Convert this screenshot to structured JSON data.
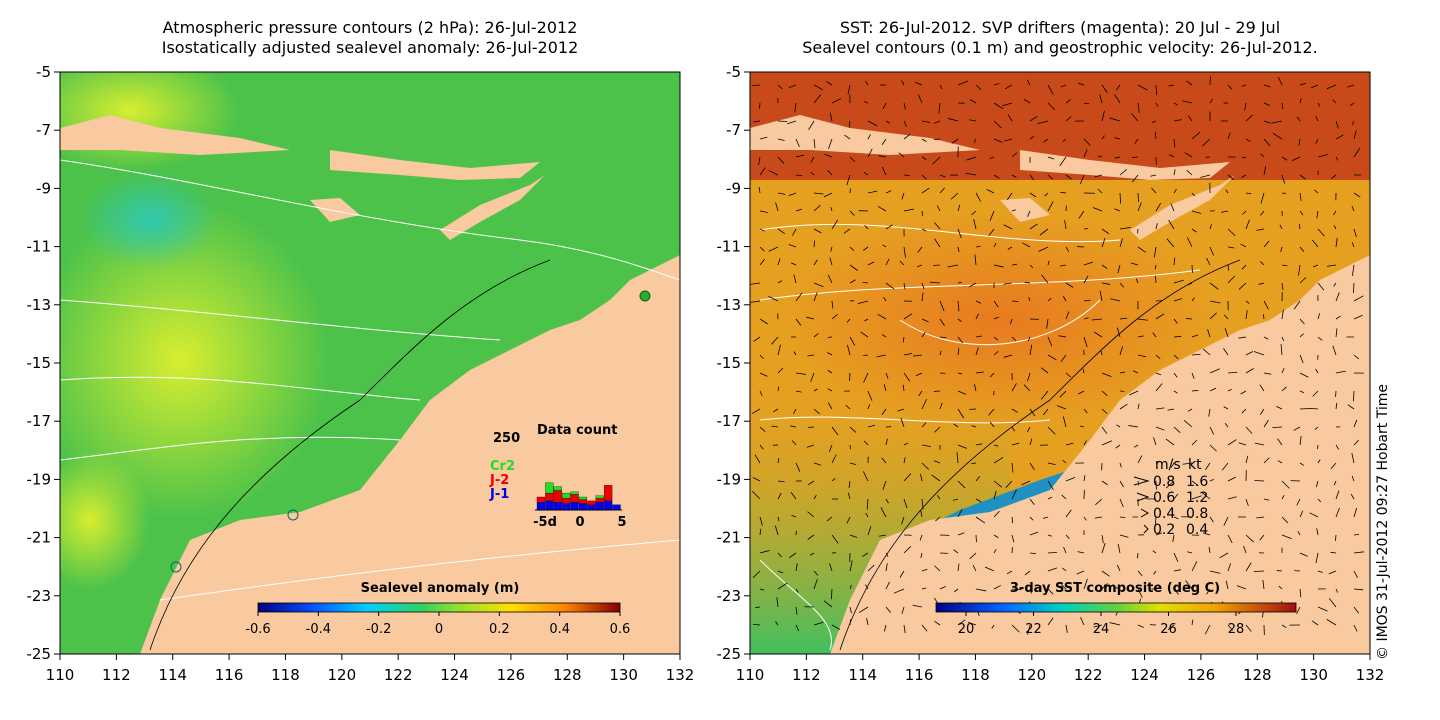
{
  "left_panel": {
    "title_line1": "Atmospheric pressure contours (2 hPa): 26-Jul-2012",
    "title_line2": "Isostatically adjusted sealevel anomaly: 26-Jul-2012",
    "colorbar": {
      "label": "Sealevel anomaly (m)",
      "ticks": [
        "-0.6",
        "-0.4",
        "-0.2",
        "0",
        "0.2",
        "0.4",
        "0.6"
      ]
    },
    "inset": {
      "title": "Data count",
      "ymax_label": "250",
      "xlabels": [
        "-5d",
        "0",
        "5"
      ],
      "satellites": [
        {
          "name": "Cr2",
          "color": "#22dd22"
        },
        {
          "name": "J-2",
          "color": "#ee0000"
        },
        {
          "name": "J-1",
          "color": "#0000ee"
        }
      ],
      "bars": [
        {
          "J-1": 30,
          "J-2": 20,
          "Cr2": 0
        },
        {
          "J-1": 35,
          "J-2": 30,
          "Cr2": 40
        },
        {
          "J-1": 30,
          "J-2": 45,
          "Cr2": 15
        },
        {
          "J-1": 25,
          "J-2": 20,
          "Cr2": 20
        },
        {
          "J-1": 30,
          "J-2": 30,
          "Cr2": 10
        },
        {
          "J-1": 25,
          "J-2": 15,
          "Cr2": 10
        },
        {
          "J-1": 20,
          "J-2": 15,
          "Cr2": 0
        },
        {
          "J-1": 30,
          "J-2": 15,
          "Cr2": 10
        },
        {
          "J-1": 35,
          "J-2": 60,
          "Cr2": 0
        },
        {
          "J-1": 20,
          "J-2": 0,
          "Cr2": 0
        }
      ]
    }
  },
  "right_panel": {
    "title_line1": "SST: 26-Jul-2012. SVP drifters (magenta): 20 Jul - 29 Jul",
    "title_line2": "Sealevel contours (0.1 m) and geostrophic velocity: 26-Jul-2012.",
    "colorbar": {
      "label": "3-day SST composite (deg C)",
      "ticks": [
        "20",
        "22",
        "24",
        "26",
        "28"
      ]
    },
    "legend": {
      "header_ms": "m/s",
      "header_kt": "kt",
      "rows": [
        {
          "ms": "0.8",
          "kt": "1.6"
        },
        {
          "ms": "0.6",
          "kt": "1.2"
        },
        {
          "ms": "0.4",
          "kt": "0.8"
        },
        {
          "ms": "0.2",
          "kt": "0.4"
        }
      ]
    }
  },
  "axes": {
    "y_ticks": [
      "-5",
      "-7",
      "-9",
      "-11",
      "-13",
      "-15",
      "-17",
      "-19",
      "-21",
      "-23",
      "-25"
    ],
    "x_ticks": [
      "110",
      "112",
      "114",
      "116",
      "118",
      "120",
      "122",
      "124",
      "126",
      "128",
      "130",
      "132"
    ],
    "lon_range": [
      110,
      132
    ],
    "lat_range": [
      -25,
      -5
    ]
  },
  "credit": "© IMOS 31-Jul-2012 09:27 Hobart Time",
  "colors": {
    "land": "#f9c9a0",
    "sla_ocean": "#4cc24a",
    "sst_north": "#c84a1a",
    "sst_ocean": "#e6a020"
  }
}
